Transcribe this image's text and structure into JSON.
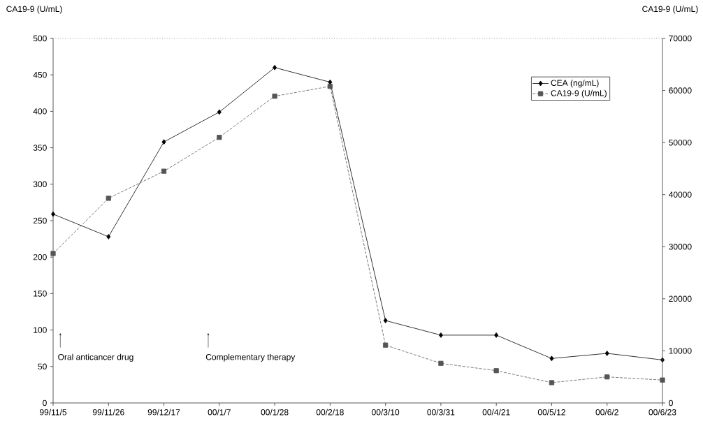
{
  "chart_data": {
    "type": "line",
    "ylabel": "CA19-9 (U/mL)",
    "y2label": "CA19-9 (U/mL)",
    "categories": [
      "99/11/5",
      "99/11/26",
      "99/12/17",
      "00/1/7",
      "00/1/28",
      "00/2/18",
      "00/3/10",
      "00/3/31",
      "00/4/21",
      "00/5/12",
      "00/6/2",
      "00/6/23"
    ],
    "series": [
      {
        "name": "CEA (ng/mL)",
        "color": "#000000",
        "marker": "diamond",
        "line_style": "solid",
        "values": [
          259,
          228,
          358,
          399,
          460,
          440,
          113,
          93,
          93,
          61,
          68,
          59
        ]
      },
      {
        "name": "CA19-9 (U/mL)",
        "color": "#555555",
        "marker": "square",
        "line_style": "dashed",
        "axis": "y2",
        "values": [
          28700,
          39300,
          44500,
          51000,
          58900,
          60800,
          11100,
          7600,
          6200,
          3900,
          5000,
          4400
        ]
      }
    ],
    "ylim": [
      0,
      500
    ],
    "yticks": [
      0,
      50,
      100,
      150,
      200,
      250,
      300,
      350,
      400,
      450,
      500
    ],
    "y2lim": [
      0,
      70000
    ],
    "y2ticks": [
      0,
      10000,
      20000,
      30000,
      40000,
      50000,
      60000,
      70000
    ],
    "legend": "top right",
    "annotations": [
      "Oral anticancer drug",
      "Complementary therapy"
    ]
  }
}
